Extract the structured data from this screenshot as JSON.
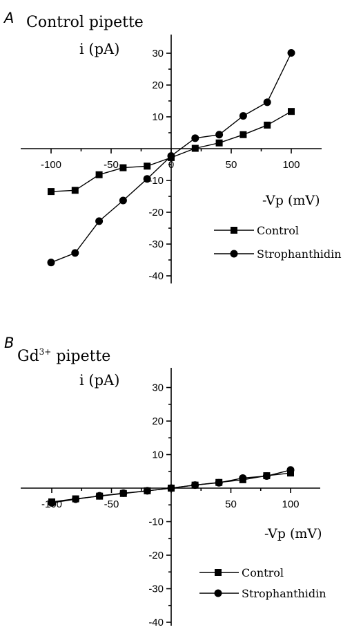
{
  "chart_data": [
    {
      "type": "line",
      "panel_label": "A",
      "title": "Control pipette",
      "ylabel": "i (pA)",
      "xlabel": "-Vp (mV)",
      "x_ticks": [
        "-100",
        "-50",
        "0",
        "50",
        "100"
      ],
      "y_ticks": [
        "-40",
        "-30",
        "-20",
        "-10",
        "10",
        "20",
        "30"
      ],
      "xlim": [
        -120,
        120
      ],
      "ylim": [
        -43,
        37
      ],
      "x": [
        -100,
        -80,
        -60,
        -40,
        -20,
        0,
        20,
        40,
        60,
        80,
        100
      ],
      "series": [
        {
          "name": "Control",
          "marker": "square",
          "values": [
            -13.5,
            -13.1,
            -8.2,
            -6.0,
            -5.5,
            -2.8,
            0.1,
            1.8,
            4.4,
            7.4,
            11.7
          ]
        },
        {
          "name": "Strophanthidin",
          "marker": "circle",
          "values": [
            -35.8,
            -32.8,
            -22.8,
            -16.3,
            -9.5,
            -2.3,
            3.3,
            4.4,
            10.3,
            14.6,
            30.1
          ]
        }
      ],
      "legend_position": "lower-right",
      "grid": false
    },
    {
      "type": "line",
      "panel_label": "B",
      "title": "Gd",
      "title_sup": "3+",
      "title_rest": " pipette",
      "ylabel": "i (pA)",
      "xlabel": "-Vp (mV)",
      "x_ticks": [
        "-100",
        "-50",
        "50",
        "100"
      ],
      "y_ticks": [
        "-40",
        "-30",
        "-20",
        "-10",
        "10",
        "20",
        "30"
      ],
      "xlim": [
        -120,
        120
      ],
      "ylim": [
        -43,
        37
      ],
      "x": [
        -100,
        -80,
        -60,
        -40,
        -20,
        0,
        20,
        40,
        60,
        80,
        100
      ],
      "series": [
        {
          "name": "Control",
          "marker": "square",
          "values": [
            -4.1,
            -3.2,
            -2.4,
            -1.6,
            -0.8,
            0.0,
            0.9,
            1.7,
            2.5,
            3.7,
            4.5
          ]
        },
        {
          "name": "Strophanthidin",
          "marker": "circle",
          "values": [
            -4.4,
            -3.3,
            -2.3,
            -1.5,
            -0.8,
            0.0,
            0.9,
            1.6,
            3.0,
            3.6,
            5.4
          ]
        }
      ],
      "legend_position": "lower-right",
      "grid": false
    }
  ]
}
